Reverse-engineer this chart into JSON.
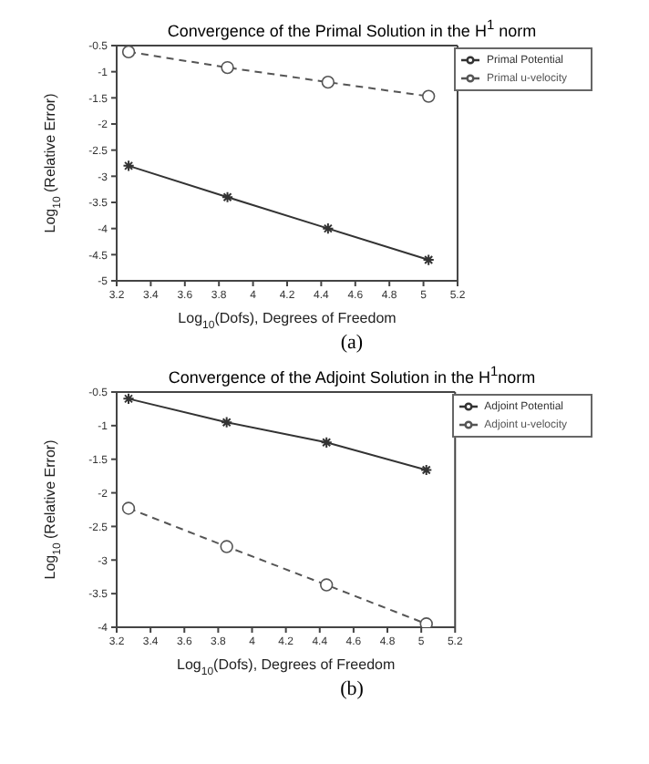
{
  "chart_data": [
    {
      "type": "line",
      "title": "Convergence of the Primal Solution in the H$^{1}$ norm",
      "xlabel": "Log$_{10}$(Dofs), Degrees of Freedom",
      "ylabel": "Log$_{10}$ (Relative Error)",
      "x": [
        3.27,
        3.85,
        4.44,
        5.03
      ],
      "xlim": [
        3.2,
        5.2
      ],
      "xticks": [
        3.2,
        3.4,
        3.6,
        3.8,
        4,
        4.2,
        4.4,
        4.6,
        4.8,
        5,
        5.2
      ],
      "ylim": [
        -5,
        -0.5
      ],
      "yticks": [
        -5,
        -4.5,
        -4,
        -3.5,
        -3,
        -2.5,
        -2,
        -1.5,
        -1,
        -0.5
      ],
      "legend": "top right",
      "grid": false,
      "annotations": [
        "(a)"
      ],
      "series": [
        {
          "name": "Primal Potential",
          "color": "#333333",
          "marker": "cross",
          "line_style": "solid",
          "values": [
            -2.8,
            -3.4,
            -4.0,
            -4.6
          ]
        },
        {
          "name": "Primal u-velocity",
          "color": "#555555",
          "marker": "circle",
          "line_style": "dashed",
          "values": [
            -0.62,
            -0.92,
            -1.2,
            -1.47
          ]
        }
      ]
    },
    {
      "type": "line",
      "title": "Convergence of the Adjoint Solution in the H$^{1}$norm",
      "xlabel": "Log$_{10}$(Dofs), Degrees of Freedom",
      "ylabel": "Log$_{10}$ (Relative Error)",
      "x": [
        3.27,
        3.85,
        4.44,
        5.03
      ],
      "xlim": [
        3.2,
        5.2
      ],
      "xticks": [
        3.2,
        3.4,
        3.6,
        3.8,
        4,
        4.2,
        4.4,
        4.6,
        4.8,
        5,
        5.2
      ],
      "ylim": [
        -4,
        -0.5
      ],
      "yticks": [
        -4,
        -3.5,
        -3,
        -2.5,
        -2,
        -1.5,
        -1,
        -0.5
      ],
      "legend": "top right",
      "grid": false,
      "annotations": [
        "(b)"
      ],
      "series": [
        {
          "name": "Adjoint Potential",
          "color": "#333333",
          "marker": "cross",
          "line_style": "solid",
          "values": [
            -0.6,
            -0.95,
            -1.25,
            -1.66
          ]
        },
        {
          "name": "Adjoint u-velocity",
          "color": "#555555",
          "marker": "circle",
          "line_style": "dashed",
          "values": [
            -2.23,
            -2.8,
            -3.37,
            -3.95
          ]
        }
      ]
    }
  ]
}
